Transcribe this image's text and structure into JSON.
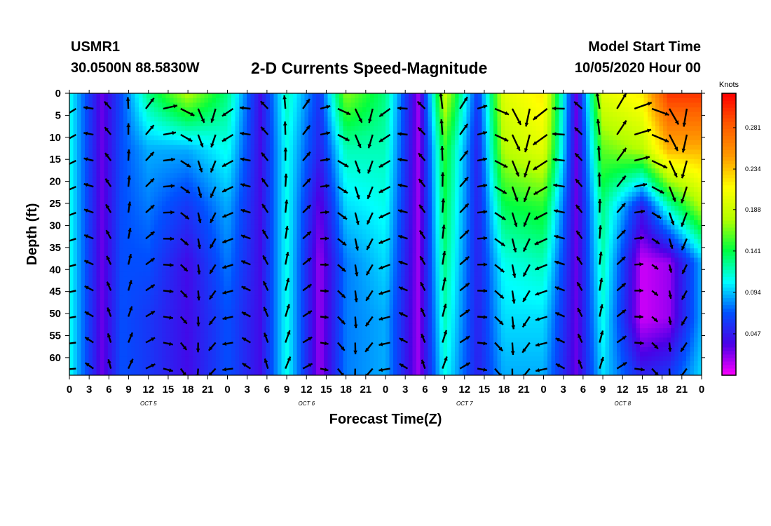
{
  "header": {
    "station": "USMR1",
    "coords": "30.0500N 88.5830W",
    "title": "2-D Currents Speed-Magnitude",
    "model_label": "Model Start Time",
    "model_time": "10/05/2020 Hour 00"
  },
  "chart_data": {
    "type": "heatmap",
    "title": "2-D Currents Speed-Magnitude",
    "xlabel": "Forecast Time(Z)",
    "ylabel": "Depth (ft)",
    "x_tick_labels": [
      "0",
      "3",
      "6",
      "9",
      "12",
      "15",
      "18",
      "21",
      "0",
      "3",
      "6",
      "9",
      "12",
      "15",
      "18",
      "21",
      "0",
      "3",
      "6",
      "9",
      "12",
      "15",
      "18",
      "21",
      "0",
      "3",
      "6",
      "9",
      "12",
      "15",
      "18",
      "21",
      "0"
    ],
    "x_range_hours": [
      0,
      96
    ],
    "date_labels": [
      {
        "text": "OCT 5",
        "hour": 12
      },
      {
        "text": "OCT 6",
        "hour": 36
      },
      {
        "text": "OCT 7",
        "hour": 60
      },
      {
        "text": "OCT 8",
        "hour": 84
      }
    ],
    "y_tick_labels": [
      "0",
      "5",
      "10",
      "15",
      "20",
      "25",
      "30",
      "35",
      "40",
      "45",
      "50",
      "55",
      "60"
    ],
    "y_range_ft": [
      0,
      64
    ],
    "colorbar": {
      "unit": "Knots",
      "range": [
        0,
        0.32
      ],
      "tick_labels": [
        "0.047",
        "0.094",
        "0.141",
        "0.188",
        "0.234",
        "0.281"
      ],
      "tick_values": [
        0.047,
        0.094,
        0.141,
        0.188,
        0.234,
        0.281
      ],
      "colors": [
        "#ff00ff",
        "#4b00e6",
        "#0050ff",
        "#00ffff",
        "#00ff40",
        "#b4ff00",
        "#ffff00",
        "#ff9a00",
        "#ff5a00",
        "#ff0000"
      ]
    },
    "speed_samples_knots": [
      {
        "hour": 0,
        "speeds": [
          0.11,
          0.11,
          0.11,
          0.11,
          0.11,
          0.11
        ]
      },
      {
        "hour": 5,
        "speeds": [
          0.03,
          0.03,
          0.03,
          0.03,
          0.03,
          0.03
        ]
      },
      {
        "hour": 8,
        "speeds": [
          0.07,
          0.07,
          0.07,
          0.07,
          0.07,
          0.07
        ]
      },
      {
        "hour": 12,
        "speeds": [
          0.13,
          0.09,
          0.08,
          0.07,
          0.06,
          0.06
        ]
      },
      {
        "hour": 18,
        "speeds": [
          0.18,
          0.09,
          0.06,
          0.04,
          0.04,
          0.04
        ]
      },
      {
        "hour": 24,
        "speeds": [
          0.13,
          0.11,
          0.09,
          0.08,
          0.07,
          0.07
        ]
      },
      {
        "hour": 29,
        "speeds": [
          0.04,
          0.04,
          0.04,
          0.04,
          0.04,
          0.04
        ]
      },
      {
        "hour": 33,
        "speeds": [
          0.12,
          0.11,
          0.11,
          0.11,
          0.11,
          0.11
        ]
      },
      {
        "hour": 38,
        "speeds": [
          0.06,
          0.05,
          0.03,
          0.02,
          0.02,
          0.02
        ]
      },
      {
        "hour": 42,
        "speeds": [
          0.17,
          0.12,
          0.1,
          0.08,
          0.08,
          0.08
        ]
      },
      {
        "hour": 48,
        "speeds": [
          0.13,
          0.12,
          0.11,
          0.1,
          0.09,
          0.09
        ]
      },
      {
        "hour": 53,
        "speeds": [
          0.02,
          0.02,
          0.02,
          0.02,
          0.02,
          0.02
        ]
      },
      {
        "hour": 57,
        "speeds": [
          0.19,
          0.15,
          0.14,
          0.13,
          0.12,
          0.11
        ]
      },
      {
        "hour": 62,
        "speeds": [
          0.06,
          0.05,
          0.05,
          0.05,
          0.05,
          0.05
        ]
      },
      {
        "hour": 66,
        "speeds": [
          0.2,
          0.18,
          0.14,
          0.11,
          0.1,
          0.09
        ]
      },
      {
        "hour": 72,
        "speeds": [
          0.22,
          0.2,
          0.15,
          0.12,
          0.1,
          0.09
        ]
      },
      {
        "hour": 77,
        "speeds": [
          0.03,
          0.03,
          0.03,
          0.03,
          0.03,
          0.03
        ]
      },
      {
        "hour": 81,
        "speeds": [
          0.2,
          0.16,
          0.13,
          0.12,
          0.11,
          0.1
        ]
      },
      {
        "hour": 87,
        "speeds": [
          0.22,
          0.18,
          0.05,
          0.01,
          0.01,
          0.05
        ]
      },
      {
        "hour": 91,
        "speeds": [
          0.3,
          0.24,
          0.12,
          0.02,
          0.02,
          0.06
        ]
      },
      {
        "hour": 96,
        "speeds": [
          0.3,
          0.24,
          0.18,
          0.09,
          0.09,
          0.1
        ]
      }
    ]
  }
}
